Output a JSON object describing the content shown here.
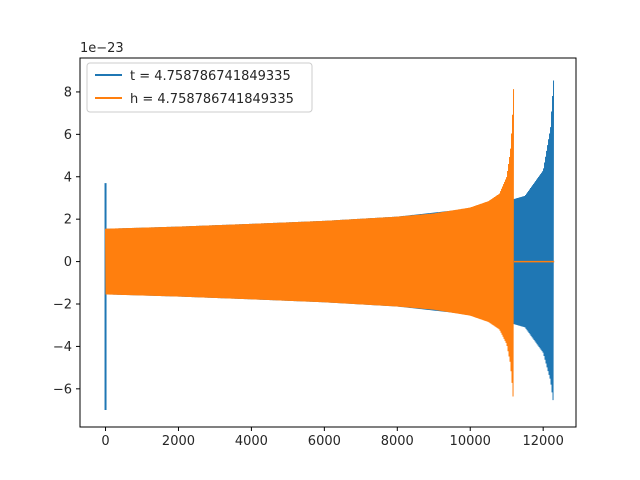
{
  "chart_data": {
    "type": "line",
    "title": "",
    "xlabel": "",
    "ylabel": "",
    "xlim": [
      -700,
      12900
    ],
    "ylim": [
      -7.8,
      9.6
    ],
    "y_offset_label": "1e−23",
    "x_ticks": [
      0,
      2000,
      4000,
      6000,
      8000,
      10000,
      12000
    ],
    "x_tick_labels": [
      "0",
      "2000",
      "4000",
      "6000",
      "8000",
      "10000",
      "12000"
    ],
    "y_ticks": [
      -6,
      -4,
      -2,
      0,
      2,
      4,
      6,
      8
    ],
    "y_tick_labels": [
      "−6",
      "−4",
      "−2",
      "0",
      "2",
      "4",
      "6",
      "8"
    ],
    "grid": false,
    "legend_position": "top-left",
    "series": [
      {
        "name": "t = 4.758786741849335",
        "color": "#1f77b4",
        "shape": "oscillating chirp",
        "x_start": 0,
        "x_end": 12290,
        "initial_spike": {
          "x": 0,
          "y_max": 3.7,
          "y_min": -7.0
        },
        "envelope_x": [
          100,
          2000,
          4000,
          6000,
          8000,
          10000,
          11000,
          11500,
          12000,
          12200,
          12290
        ],
        "envelope_upper": [
          1.55,
          1.65,
          1.78,
          1.92,
          2.12,
          2.5,
          2.85,
          3.1,
          4.3,
          6.3,
          8.7
        ],
        "envelope_lower": [
          -1.55,
          -1.65,
          -1.78,
          -1.92,
          -2.12,
          -2.5,
          -2.85,
          -3.1,
          -4.3,
          -5.6,
          -6.8
        ],
        "tail": {
          "x_start": 12290,
          "x_end": 12300,
          "y": 0
        }
      },
      {
        "name": "h = 4.758786741849335",
        "color": "#ff7f0e",
        "shape": "oscillating chirp",
        "x_start": 0,
        "x_end": 11200,
        "envelope_x": [
          0,
          1000,
          2000,
          4000,
          6000,
          8000,
          9000,
          10000,
          10500,
          10800,
          11000,
          11100,
          11150,
          11200
        ],
        "envelope_upper": [
          1.55,
          1.6,
          1.65,
          1.78,
          1.92,
          2.12,
          2.27,
          2.55,
          2.85,
          3.2,
          4.0,
          5.2,
          6.5,
          8.7
        ],
        "envelope_lower": [
          -1.55,
          -1.6,
          -1.65,
          -1.78,
          -1.92,
          -2.12,
          -2.27,
          -2.55,
          -2.85,
          -3.2,
          -3.9,
          -4.8,
          -5.8,
          -7.0
        ],
        "tail": {
          "x_start": 11200,
          "x_end": 12300,
          "y": 0
        }
      }
    ]
  }
}
